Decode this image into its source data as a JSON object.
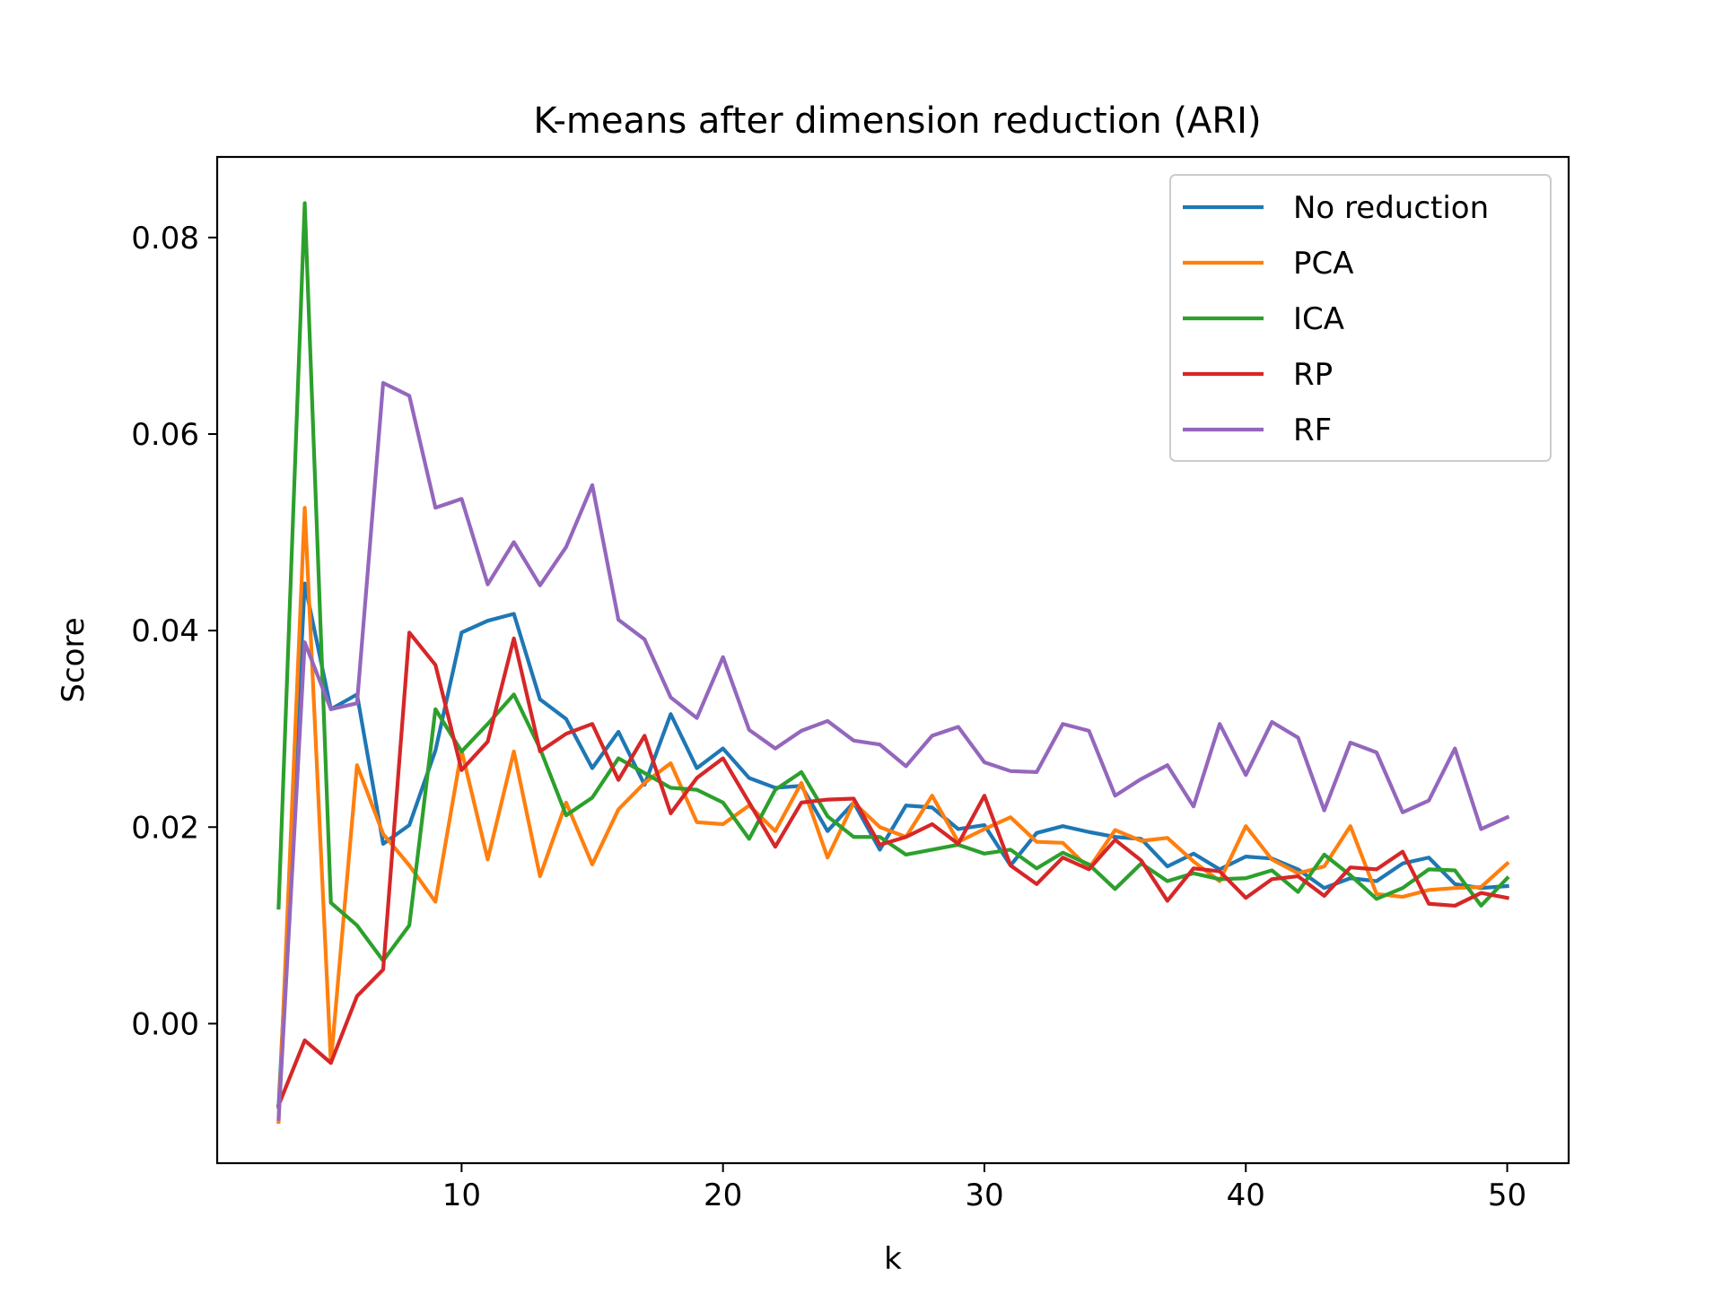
{
  "chart_data": {
    "type": "line",
    "title": "K-means after dimension reduction (ARI)",
    "xlabel": "k",
    "ylabel": "Score",
    "xlim": [
      0.65,
      52.35
    ],
    "ylim": [
      -0.0142,
      0.0882
    ],
    "x_ticks": [
      10,
      20,
      30,
      40,
      50
    ],
    "x_tick_labels": [
      "10",
      "20",
      "30",
      "40",
      "50"
    ],
    "y_ticks": [
      0.0,
      0.02,
      0.04,
      0.06,
      0.08
    ],
    "y_tick_labels": [
      "0.00",
      "0.02",
      "0.04",
      "0.06",
      "0.08"
    ],
    "grid": false,
    "legend_position": "top-right",
    "x": [
      3,
      4,
      5,
      6,
      7,
      8,
      9,
      10,
      11,
      12,
      13,
      14,
      15,
      16,
      17,
      18,
      19,
      20,
      21,
      22,
      23,
      24,
      25,
      26,
      27,
      28,
      29,
      30,
      31,
      32,
      33,
      34,
      35,
      36,
      37,
      38,
      39,
      40,
      41,
      42,
      43,
      44,
      45,
      46,
      47,
      48,
      49,
      50
    ],
    "series": [
      {
        "name": "No reduction",
        "color": "#1f77b4",
        "values": [
          -0.0085,
          0.0448,
          0.032,
          0.0335,
          0.0183,
          0.0202,
          0.0278,
          0.0398,
          0.041,
          0.0417,
          0.033,
          0.031,
          0.026,
          0.0297,
          0.0243,
          0.0315,
          0.026,
          0.028,
          0.025,
          0.024,
          0.0242,
          0.0196,
          0.0225,
          0.0177,
          0.0222,
          0.022,
          0.0198,
          0.0202,
          0.0161,
          0.0194,
          0.0201,
          0.0195,
          0.019,
          0.0188,
          0.016,
          0.0173,
          0.0157,
          0.017,
          0.0168,
          0.0157,
          0.0138,
          0.0148,
          0.0145,
          0.0163,
          0.0169,
          0.0142,
          0.0138,
          0.014
        ]
      },
      {
        "name": "PCA",
        "color": "#ff7f0e",
        "values": [
          -0.01,
          0.0525,
          -0.004,
          0.0263,
          0.0193,
          0.0161,
          0.0124,
          0.0278,
          0.0167,
          0.0277,
          0.015,
          0.0225,
          0.0162,
          0.0218,
          0.0245,
          0.0265,
          0.0205,
          0.0203,
          0.0222,
          0.0196,
          0.0245,
          0.0169,
          0.0225,
          0.02,
          0.019,
          0.0232,
          0.0185,
          0.0198,
          0.021,
          0.0185,
          0.0184,
          0.0158,
          0.0197,
          0.0186,
          0.0189,
          0.0165,
          0.0145,
          0.0201,
          0.0167,
          0.0153,
          0.016,
          0.0201,
          0.0132,
          0.0129,
          0.0136,
          0.0138,
          0.0139,
          0.0163
        ]
      },
      {
        "name": "ICA",
        "color": "#2ca02c",
        "values": [
          0.0118,
          0.0835,
          0.0123,
          0.01,
          0.0064,
          0.01,
          0.032,
          0.0277,
          0.0305,
          0.0335,
          0.028,
          0.0212,
          0.023,
          0.027,
          0.0255,
          0.024,
          0.0238,
          0.0225,
          0.0188,
          0.0238,
          0.0256,
          0.0211,
          0.019,
          0.019,
          0.0172,
          0.0177,
          0.0182,
          0.0173,
          0.0177,
          0.0158,
          0.0174,
          0.0162,
          0.0137,
          0.0163,
          0.0145,
          0.0153,
          0.0147,
          0.0148,
          0.0156,
          0.0134,
          0.0172,
          0.0151,
          0.0127,
          0.0138,
          0.0157,
          0.0156,
          0.012,
          0.0148
        ]
      },
      {
        "name": "RP",
        "color": "#d62728",
        "values": [
          -0.0083,
          -0.0017,
          -0.004,
          0.0028,
          0.0055,
          0.0398,
          0.0365,
          0.0258,
          0.0287,
          0.0392,
          0.0277,
          0.0295,
          0.0305,
          0.0248,
          0.0293,
          0.0214,
          0.025,
          0.027,
          0.0225,
          0.018,
          0.0225,
          0.0228,
          0.0229,
          0.0182,
          0.019,
          0.0203,
          0.0183,
          0.0232,
          0.0161,
          0.0142,
          0.0169,
          0.0157,
          0.0187,
          0.0166,
          0.0125,
          0.0158,
          0.0155,
          0.0128,
          0.0147,
          0.015,
          0.013,
          0.0159,
          0.0157,
          0.0175,
          0.0122,
          0.012,
          0.0133,
          0.0128
        ]
      },
      {
        "name": "RF",
        "color": "#9467bd",
        "values": [
          -0.0097,
          0.0388,
          0.032,
          0.0326,
          0.0652,
          0.0639,
          0.0525,
          0.0534,
          0.0447,
          0.049,
          0.0446,
          0.0485,
          0.0548,
          0.0411,
          0.0391,
          0.0332,
          0.0311,
          0.0373,
          0.0299,
          0.028,
          0.0298,
          0.0308,
          0.0288,
          0.0284,
          0.0262,
          0.0293,
          0.0302,
          0.0266,
          0.0257,
          0.0256,
          0.0305,
          0.0298,
          0.0232,
          0.0249,
          0.0263,
          0.0221,
          0.0305,
          0.0253,
          0.0307,
          0.0291,
          0.0217,
          0.0286,
          0.0276,
          0.0215,
          0.0227,
          0.028,
          0.0198,
          0.021
        ]
      }
    ]
  }
}
